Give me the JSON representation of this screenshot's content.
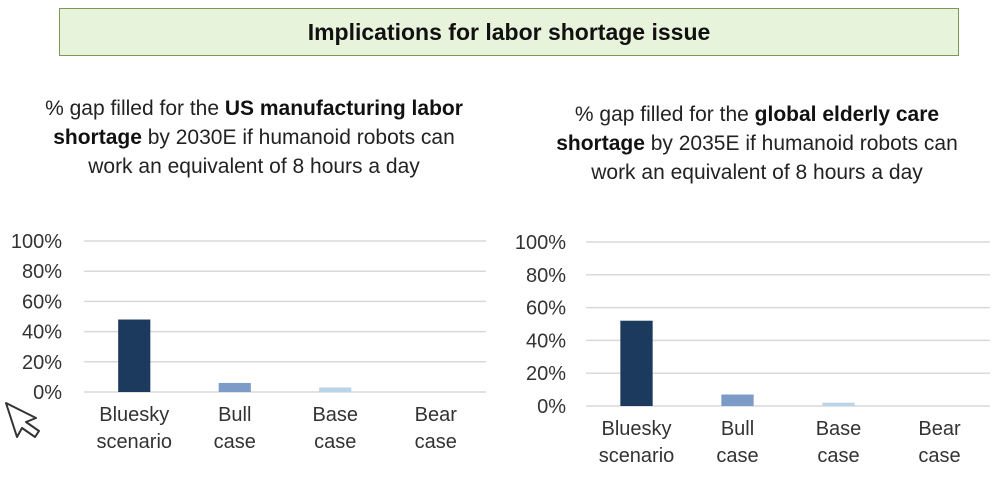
{
  "banner": {
    "title": "Implications for labor shortage issue"
  },
  "charts": [
    {
      "title_parts": [
        {
          "text": "% gap filled for the ",
          "bold": false
        },
        {
          "text": "US manufacturing labor shortage",
          "bold": true
        },
        {
          "text": " by 2030E if humanoid robots can work an equivalent of 8 hours a day",
          "bold": false
        }
      ]
    },
    {
      "title_parts": [
        {
          "text": "% gap filled for the ",
          "bold": false
        },
        {
          "text": "global elderly care shortage",
          "bold": true
        },
        {
          "text": " by 2035E if humanoid robots can work an equivalent of 8 hours a day",
          "bold": false
        }
      ]
    }
  ],
  "chart_data": [
    {
      "type": "bar",
      "title": "% gap filled for the US manufacturing labor shortage by 2030E if humanoid robots can work an equivalent of 8 hours a day",
      "categories": [
        [
          "Bluesky",
          "scenario"
        ],
        [
          "Bull",
          "case"
        ],
        [
          "Base",
          "case"
        ],
        [
          "Bear",
          "case"
        ]
      ],
      "values": [
        48,
        6,
        3,
        0
      ],
      "colors": [
        "#1c3a5e",
        "#7d9bc7",
        "#b9d3ea",
        "#d9e6f2"
      ],
      "ylim": [
        0,
        100
      ],
      "yticks": [
        0,
        20,
        40,
        60,
        80,
        100
      ],
      "ytick_labels": [
        "0%",
        "20%",
        "40%",
        "60%",
        "80%",
        "100%"
      ],
      "grid": true,
      "legend": "none"
    },
    {
      "type": "bar",
      "title": "% gap filled for the global elderly care shortage by 2035E if humanoid robots can work an equivalent of 8 hours a day",
      "categories": [
        [
          "Bluesky",
          "scenario"
        ],
        [
          "Bull",
          "case"
        ],
        [
          "Base",
          "case"
        ],
        [
          "Bear",
          "case"
        ]
      ],
      "values": [
        52,
        7,
        2,
        0
      ],
      "colors": [
        "#1c3a5e",
        "#7d9bc7",
        "#b9d3ea",
        "#d9e6f2"
      ],
      "ylim": [
        0,
        100
      ],
      "yticks": [
        0,
        20,
        40,
        60,
        80,
        100
      ],
      "ytick_labels": [
        "0%",
        "20%",
        "40%",
        "60%",
        "80%",
        "100%"
      ],
      "grid": true,
      "legend": "none"
    }
  ],
  "colors": {
    "banner_fill": "#e8f3dc",
    "banner_border": "#7a9a5a",
    "grid": "#d9d9d9"
  },
  "icons": {
    "cursor": "mouse-pointer-icon"
  }
}
